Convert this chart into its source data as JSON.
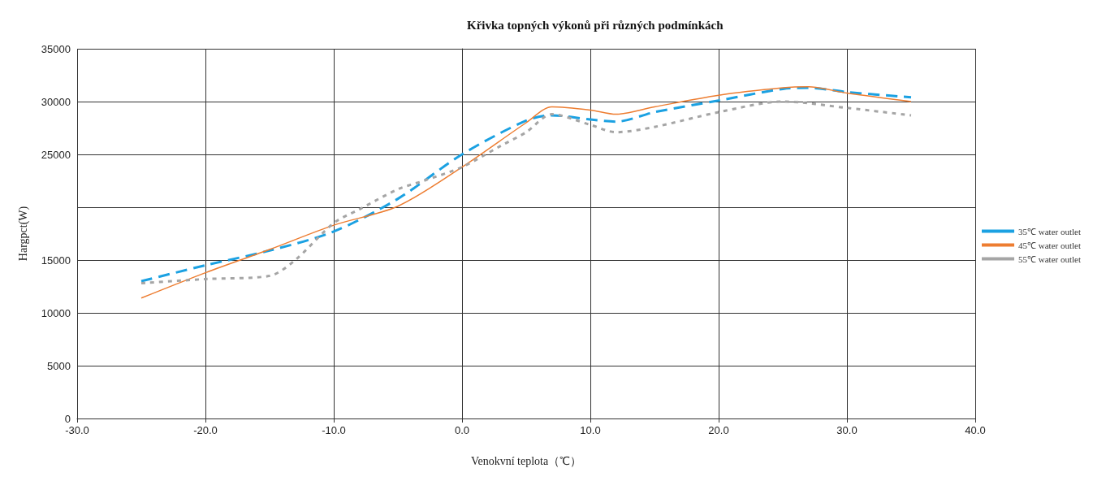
{
  "chart_data": {
    "type": "line",
    "title": "Křivka topných výkonů při různých podmínkách",
    "xlabel": "Venokvní teplota（℃）",
    "ylabel": "Hargpct(W)",
    "xlim": [
      -30,
      40
    ],
    "xticks": [
      {
        "value": -30,
        "label": "-30.0"
      },
      {
        "value": -20,
        "label": "-20.0"
      },
      {
        "value": -10,
        "label": "-10.0"
      },
      {
        "value": 0,
        "label": "0.0"
      },
      {
        "value": 10,
        "label": "10.0"
      },
      {
        "value": 20,
        "label": "20.0"
      },
      {
        "value": 30,
        "label": "30.0"
      },
      {
        "value": 40,
        "label": "40.0"
      }
    ],
    "ylim": [
      0,
      35000
    ],
    "yticks": [
      0,
      5000,
      10000,
      15000,
      {
        "value": 20000,
        "label": null
      },
      25000,
      30000,
      35000
    ],
    "grid": true,
    "legend": "right",
    "marker": "none",
    "series": [
      {
        "name": "35℃ water outlet",
        "color": "#1ba1e2",
        "line_style": "dashed",
        "x": [
          -25,
          -20,
          -15,
          -10,
          -5,
          0,
          5,
          7,
          10,
          12,
          15,
          20,
          25,
          27,
          30,
          35
        ],
        "values": [
          13000,
          14500,
          15900,
          17700,
          20800,
          25000,
          28200,
          28700,
          28300,
          28100,
          29000,
          30100,
          31200,
          31300,
          30900,
          30400
        ]
      },
      {
        "name": "45℃ water outlet",
        "color": "#ed7d31",
        "line_style": "solid",
        "x": [
          -25,
          -20,
          -15,
          -10,
          -5,
          0,
          5,
          7,
          10,
          12,
          15,
          20,
          25,
          27,
          30,
          35
        ],
        "values": [
          11400,
          13800,
          16000,
          18300,
          20100,
          23800,
          28000,
          29500,
          29200,
          28800,
          29500,
          30600,
          31300,
          31400,
          30800,
          30000
        ]
      },
      {
        "name": "55℃ water outlet",
        "color": "#a5a5a5",
        "line_style": "dotted",
        "x": [
          -25,
          -20,
          -15,
          -13,
          -10,
          -8,
          -5,
          -3,
          0,
          3,
          5,
          7,
          10,
          12,
          15,
          20,
          25,
          30,
          35
        ],
        "values": [
          12800,
          13200,
          13500,
          15000,
          18500,
          19800,
          21700,
          22500,
          23800,
          25800,
          27100,
          28800,
          27800,
          27100,
          27600,
          29000,
          30000,
          29400,
          28700
        ]
      }
    ]
  }
}
